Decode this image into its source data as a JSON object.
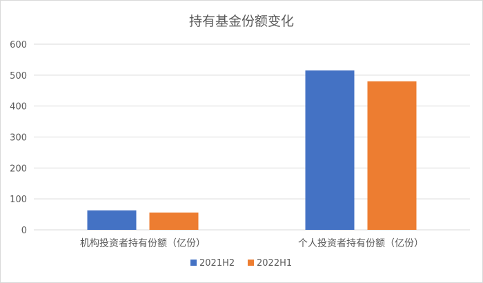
{
  "chart_data": {
    "type": "bar",
    "title": "持有基金份额变化",
    "categories": [
      "机构投资者持有份额（亿份）",
      "个人投资者持有份额（亿份）"
    ],
    "series": [
      {
        "name": "2021H2",
        "values": [
          63,
          515
        ],
        "color": "#4472c4"
      },
      {
        "name": "2022H1",
        "values": [
          56,
          480
        ],
        "color": "#ed7d31"
      }
    ],
    "ylim": [
      0,
      600
    ],
    "yticks": [
      0,
      100,
      200,
      300,
      400,
      500,
      600
    ],
    "grid": true,
    "legend_position": "bottom",
    "xlabel": "",
    "ylabel": ""
  }
}
